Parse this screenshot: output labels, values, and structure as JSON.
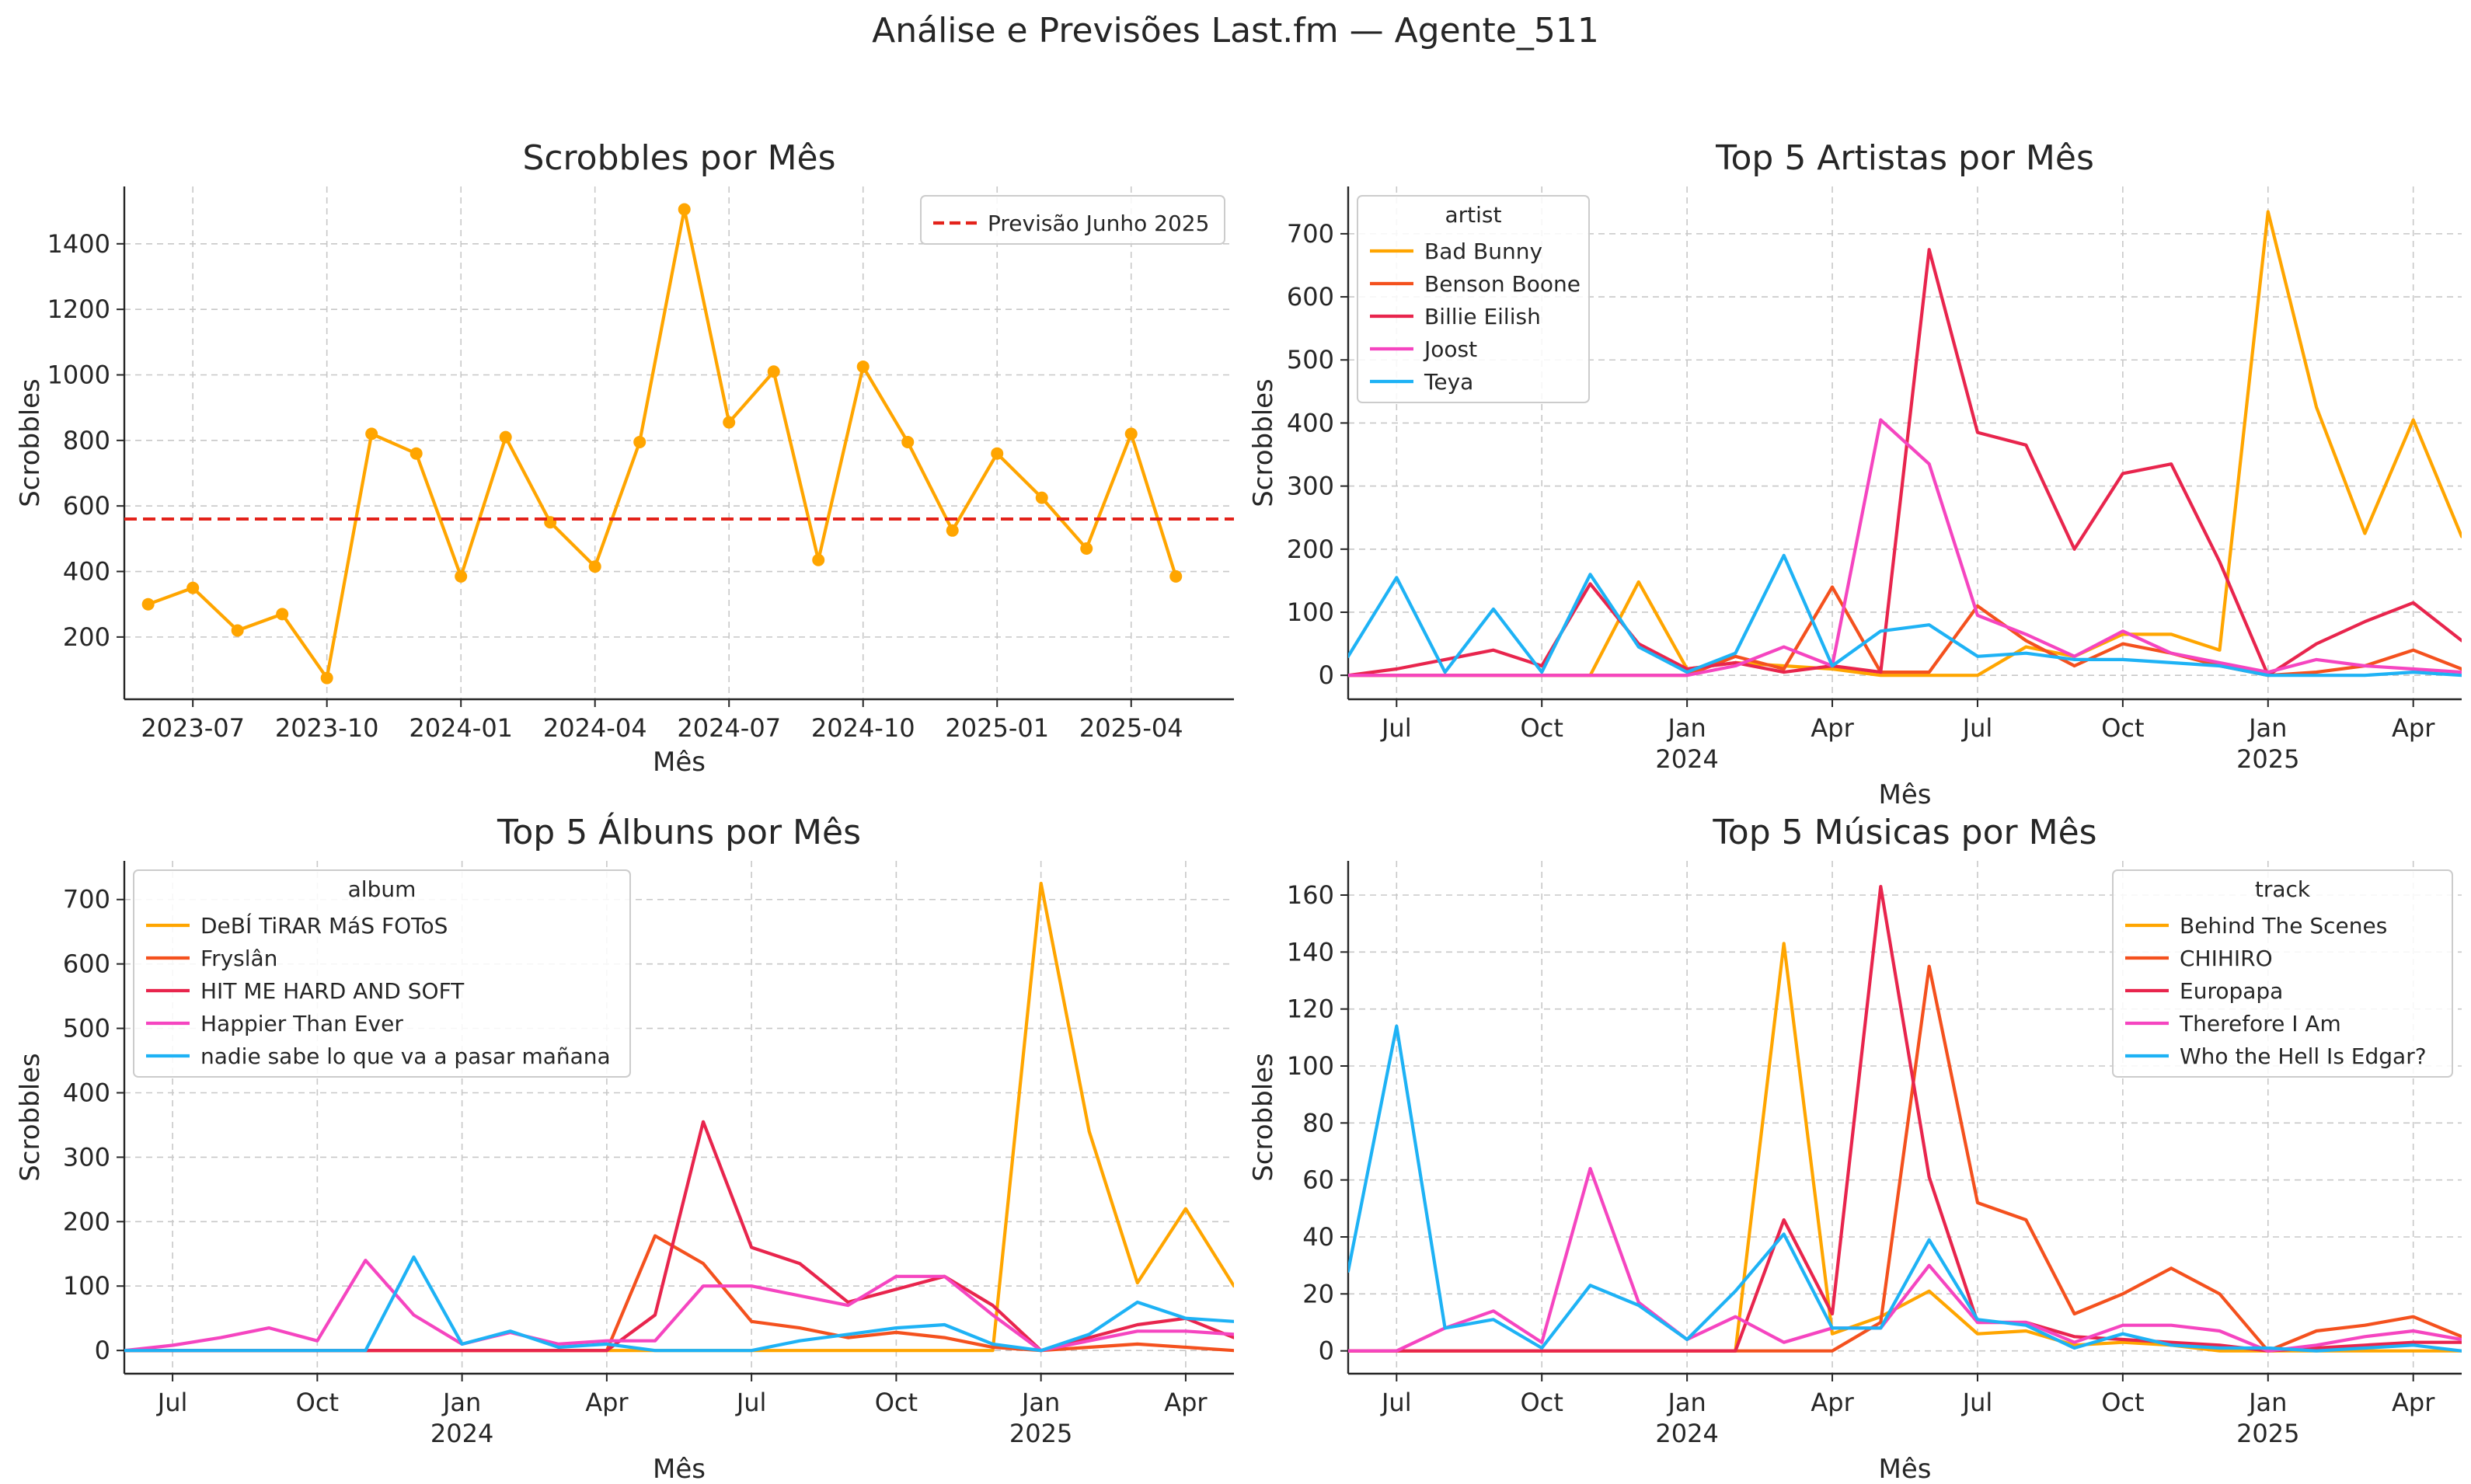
{
  "suptitle": "Análise e Previsões Last.fm — Agente_511",
  "colors": {
    "orange": "#FFA500",
    "deep_orange": "#F4511E",
    "crimson": "#E8254D",
    "pink": "#F545C0",
    "sky": "#1EB2F5",
    "forecast_red": "#E3221A"
  },
  "chart_data": [
    {
      "type": "line",
      "title": "Scrobbles por Mês",
      "xlabel": "Mês",
      "ylabel": "Scrobbles",
      "x_axis": "date",
      "x": [
        "2023-06",
        "2023-07",
        "2023-08",
        "2023-09",
        "2023-10",
        "2023-11",
        "2023-12",
        "2024-01",
        "2024-02",
        "2024-03",
        "2024-04",
        "2024-05",
        "2024-06",
        "2024-07",
        "2024-08",
        "2024-09",
        "2024-10",
        "2024-11",
        "2024-12",
        "2025-01",
        "2025-02",
        "2025-03",
        "2025-04",
        "2025-05"
      ],
      "xlim": [
        "2023-05-15",
        "2025-06-10"
      ],
      "xticks": [
        "2023-07",
        "2023-10",
        "2024-01",
        "2024-04",
        "2024-07",
        "2024-10",
        "2025-01",
        "2025-04"
      ],
      "ylim": [
        10,
        1575
      ],
      "yticks": [
        200,
        400,
        600,
        800,
        1000,
        1200,
        1400
      ],
      "grid": true,
      "legend_position": "top-right",
      "markers": true,
      "series": [
        {
          "color": "#FFA500",
          "values": [
            300,
            350,
            220,
            270,
            75,
            820,
            760,
            385,
            810,
            550,
            415,
            795,
            1505,
            855,
            1010,
            435,
            1025,
            795,
            525,
            760,
            625,
            470,
            820,
            385
          ]
        }
      ],
      "reference_lines": [
        {
          "name": "Previsão Junho 2025",
          "y": 560,
          "color": "#E3221A",
          "style": "dashed"
        }
      ]
    },
    {
      "type": "line",
      "title": "Top 5 Artistas por Mês",
      "xlabel": "Mês",
      "ylabel": "Scrobbles",
      "x_axis": "date",
      "x": [
        "2023-06",
        "2023-07",
        "2023-08",
        "2023-09",
        "2023-10",
        "2023-11",
        "2023-12",
        "2024-01",
        "2024-02",
        "2024-03",
        "2024-04",
        "2024-05",
        "2024-06",
        "2024-07",
        "2024-08",
        "2024-09",
        "2024-10",
        "2024-11",
        "2024-12",
        "2025-01",
        "2025-02",
        "2025-03",
        "2025-04",
        "2025-05"
      ],
      "xlim": [
        "2023-06",
        "2025-05"
      ],
      "xticks": [
        "2023-07",
        "2023-10",
        "2024-01",
        "2024-04",
        "2024-07",
        "2024-10",
        "2025-01",
        "2025-04"
      ],
      "xtick_labels": [
        "Jul",
        "Oct",
        "Jan",
        "Apr",
        "Jul",
        "Oct",
        "Jan",
        "Apr"
      ],
      "xtick_years": [
        "",
        "",
        "2024",
        "",
        "",
        "",
        "2025",
        ""
      ],
      "ylim": [
        -38,
        775
      ],
      "yticks": [
        0,
        100,
        200,
        300,
        400,
        500,
        600,
        700
      ],
      "grid": true,
      "legend_title": "artist",
      "legend_position": "top-left",
      "series": [
        {
          "name": "Bad Bunny",
          "color": "#FFA500",
          "values": [
            0,
            0,
            0,
            0,
            0,
            0,
            148,
            10,
            20,
            15,
            10,
            0,
            0,
            0,
            45,
            30,
            65,
            65,
            40,
            735,
            425,
            225,
            405,
            220
          ]
        },
        {
          "name": "Benson Boone",
          "color": "#F4511E",
          "values": [
            0,
            0,
            0,
            0,
            0,
            0,
            0,
            0,
            30,
            10,
            140,
            5,
            5,
            110,
            55,
            15,
            50,
            35,
            15,
            0,
            5,
            15,
            40,
            10
          ]
        },
        {
          "name": "Billie Eilish",
          "color": "#E8254D",
          "values": [
            0,
            10,
            25,
            40,
            15,
            145,
            50,
            10,
            20,
            5,
            15,
            5,
            675,
            385,
            365,
            200,
            320,
            335,
            180,
            0,
            50,
            85,
            115,
            55
          ]
        },
        {
          "name": "Joost",
          "color": "#F545C0",
          "values": [
            0,
            0,
            0,
            0,
            0,
            0,
            0,
            0,
            15,
            45,
            15,
            405,
            335,
            95,
            65,
            30,
            70,
            35,
            20,
            5,
            25,
            15,
            10,
            5
          ]
        },
        {
          "name": "Teya",
          "color": "#1EB2F5",
          "values": [
            30,
            155,
            5,
            105,
            5,
            160,
            45,
            5,
            35,
            190,
            15,
            70,
            80,
            30,
            35,
            25,
            25,
            20,
            15,
            0,
            0,
            0,
            5,
            0
          ]
        }
      ]
    },
    {
      "type": "line",
      "title": "Top 5 Álbuns por Mês",
      "xlabel": "Mês",
      "ylabel": "Scrobbles",
      "x_axis": "date",
      "x": [
        "2023-06",
        "2023-07",
        "2023-08",
        "2023-09",
        "2023-10",
        "2023-11",
        "2023-12",
        "2024-01",
        "2024-02",
        "2024-03",
        "2024-04",
        "2024-05",
        "2024-06",
        "2024-07",
        "2024-08",
        "2024-09",
        "2024-10",
        "2024-11",
        "2024-12",
        "2025-01",
        "2025-02",
        "2025-03",
        "2025-04",
        "2025-05"
      ],
      "xlim": [
        "2023-06",
        "2025-05"
      ],
      "xticks": [
        "2023-07",
        "2023-10",
        "2024-01",
        "2024-04",
        "2024-07",
        "2024-10",
        "2025-01",
        "2025-04"
      ],
      "xtick_labels": [
        "Jul",
        "Oct",
        "Jan",
        "Apr",
        "Jul",
        "Oct",
        "Jan",
        "Apr"
      ],
      "xtick_years": [
        "",
        "",
        "2024",
        "",
        "",
        "",
        "2025",
        ""
      ],
      "ylim": [
        -36,
        760
      ],
      "yticks": [
        0,
        100,
        200,
        300,
        400,
        500,
        600,
        700
      ],
      "grid": true,
      "legend_title": "album",
      "legend_position": "top-left",
      "series": [
        {
          "name": "DeBÍ TiRAR MáS FOToS",
          "color": "#FFA500",
          "values": [
            0,
            0,
            0,
            0,
            0,
            0,
            0,
            0,
            0,
            0,
            0,
            0,
            0,
            0,
            0,
            0,
            0,
            0,
            0,
            725,
            340,
            105,
            220,
            100
          ]
        },
        {
          "name": "Fryslân",
          "color": "#F4511E",
          "values": [
            0,
            0,
            0,
            0,
            0,
            0,
            0,
            0,
            0,
            0,
            0,
            178,
            135,
            45,
            35,
            20,
            28,
            20,
            5,
            0,
            5,
            10,
            5,
            0
          ]
        },
        {
          "name": "HIT ME HARD AND SOFT",
          "color": "#E8254D",
          "values": [
            0,
            0,
            0,
            0,
            0,
            0,
            0,
            0,
            0,
            0,
            0,
            55,
            355,
            160,
            135,
            75,
            95,
            115,
            70,
            0,
            20,
            40,
            50,
            20
          ]
        },
        {
          "name": "Happier Than Ever",
          "color": "#F545C0",
          "values": [
            0,
            8,
            20,
            35,
            15,
            140,
            55,
            10,
            28,
            10,
            15,
            15,
            100,
            100,
            85,
            70,
            115,
            115,
            55,
            0,
            15,
            30,
            30,
            25
          ]
        },
        {
          "name": "nadie sabe lo que va a pasar mañana",
          "color": "#1EB2F5",
          "values": [
            0,
            0,
            0,
            0,
            0,
            0,
            145,
            10,
            30,
            5,
            10,
            0,
            0,
            0,
            15,
            25,
            35,
            40,
            10,
            0,
            25,
            75,
            50,
            45
          ]
        }
      ]
    },
    {
      "type": "line",
      "title": "Top 5 Músicas por Mês",
      "xlabel": "Mês",
      "ylabel": "Scrobbles",
      "x_axis": "date",
      "x": [
        "2023-06",
        "2023-07",
        "2023-08",
        "2023-09",
        "2023-10",
        "2023-11",
        "2023-12",
        "2024-01",
        "2024-02",
        "2024-03",
        "2024-04",
        "2024-05",
        "2024-06",
        "2024-07",
        "2024-08",
        "2024-09",
        "2024-10",
        "2024-11",
        "2024-12",
        "2025-01",
        "2025-02",
        "2025-03",
        "2025-04",
        "2025-05"
      ],
      "xlim": [
        "2023-06",
        "2025-05"
      ],
      "xticks": [
        "2023-07",
        "2023-10",
        "2024-01",
        "2024-04",
        "2024-07",
        "2024-10",
        "2025-01",
        "2025-04"
      ],
      "xtick_labels": [
        "Jul",
        "Oct",
        "Jan",
        "Apr",
        "Jul",
        "Oct",
        "Jan",
        "Apr"
      ],
      "xtick_years": [
        "",
        "",
        "2024",
        "",
        "",
        "",
        "2025",
        ""
      ],
      "ylim": [
        -8,
        172
      ],
      "yticks": [
        0,
        20,
        40,
        60,
        80,
        100,
        120,
        140,
        160
      ],
      "grid": true,
      "legend_title": "track",
      "legend_position": "top-right",
      "series": [
        {
          "name": "Behind The Scenes",
          "color": "#FFA500",
          "values": [
            0,
            0,
            0,
            0,
            0,
            0,
            0,
            0,
            0,
            143,
            6,
            12,
            21,
            6,
            7,
            2,
            3,
            2,
            0,
            0,
            0,
            0,
            0,
            0
          ]
        },
        {
          "name": "CHIHIRO",
          "color": "#F4511E",
          "values": [
            0,
            0,
            0,
            0,
            0,
            0,
            0,
            0,
            0,
            0,
            0,
            10,
            135,
            52,
            46,
            13,
            20,
            29,
            20,
            0,
            7,
            9,
            12,
            5
          ]
        },
        {
          "name": "Europapa",
          "color": "#E8254D",
          "values": [
            0,
            0,
            0,
            0,
            0,
            0,
            0,
            0,
            0,
            46,
            13,
            163,
            61,
            10,
            10,
            5,
            4,
            3,
            2,
            0,
            1,
            2,
            3,
            3
          ]
        },
        {
          "name": "Therefore I Am",
          "color": "#F545C0",
          "values": [
            0,
            0,
            8,
            14,
            3,
            64,
            17,
            4,
            12,
            3,
            8,
            8,
            30,
            10,
            10,
            3,
            9,
            9,
            7,
            0,
            2,
            5,
            7,
            4
          ]
        },
        {
          "name": "Who the Hell Is Edgar?",
          "color": "#1EB2F5",
          "values": [
            28,
            114,
            8,
            11,
            1,
            23,
            16,
            4,
            21,
            41,
            8,
            8,
            39,
            11,
            9,
            1,
            6,
            2,
            1,
            1,
            0,
            1,
            2,
            0
          ]
        }
      ]
    }
  ]
}
